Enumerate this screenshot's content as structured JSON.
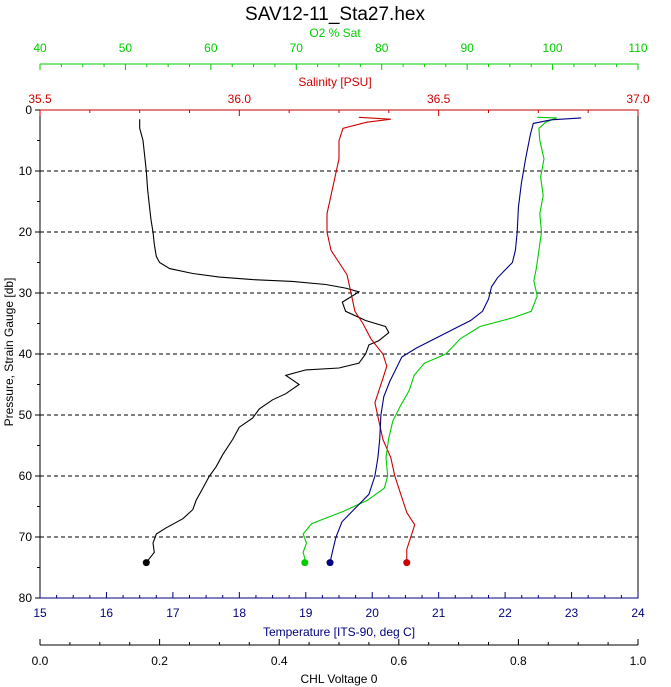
{
  "chart_data": {
    "type": "line",
    "title": "SAV12-11_Sta27.hex",
    "colors": {
      "temperature": "#000000",
      "salinity": "#cc0000",
      "o2": "#00cc00",
      "chl": "#000080",
      "axis": "#000000",
      "grid": "#000000"
    },
    "y_axis": {
      "label": "Pressure, Strain Gauge [db]",
      "range": [
        0,
        80
      ],
      "inverted": true,
      "ticks": [
        0,
        10,
        20,
        30,
        40,
        50,
        60,
        70,
        80
      ],
      "tick_labels": [
        "0",
        "10",
        "20",
        "30",
        "40",
        "50",
        "60",
        "70",
        "80"
      ],
      "dashed_grid": [
        10,
        20,
        30,
        40,
        50,
        60,
        70
      ]
    },
    "x_axes": [
      {
        "id": "o2",
        "label": "O2 % Sat",
        "position": "top-outer",
        "range": [
          40,
          110
        ],
        "ticks": [
          40,
          50,
          60,
          70,
          80,
          90,
          100,
          110
        ],
        "tick_labels": [
          "40",
          "50",
          "60",
          "70",
          "80",
          "90",
          "100",
          "110"
        ]
      },
      {
        "id": "salinity",
        "label": "Salinity [PSU]",
        "position": "top-inner",
        "range": [
          35.5,
          37.0
        ],
        "ticks": [
          35.5,
          36.0,
          36.5,
          37.0
        ],
        "tick_labels": [
          "35.5",
          "36.0",
          "36.5",
          "37.0"
        ]
      },
      {
        "id": "temperature",
        "label": "Temperature [ITS-90, deg C]",
        "position": "bottom-inner",
        "range": [
          15,
          24
        ],
        "ticks": [
          15,
          16,
          17,
          18,
          19,
          20,
          21,
          22,
          23,
          24
        ],
        "tick_labels": [
          "15",
          "16",
          "17",
          "18",
          "19",
          "20",
          "21",
          "22",
          "23",
          "24"
        ]
      },
      {
        "id": "chl",
        "label": "CHL Voltage 0",
        "position": "bottom-outer",
        "range": [
          0.0,
          1.0
        ],
        "ticks": [
          0.0,
          0.2,
          0.4,
          0.6,
          0.8,
          1.0
        ],
        "tick_labels": [
          "0.0",
          "0.2",
          "0.4",
          "0.6",
          "0.8",
          "1.0"
        ]
      }
    ],
    "series": [
      {
        "id": "temperature",
        "axis": "temperature",
        "values": [
          [
            16.5,
            1.5
          ],
          [
            16.5,
            3
          ],
          [
            16.55,
            5
          ],
          [
            16.58,
            8
          ],
          [
            16.6,
            10
          ],
          [
            16.62,
            13
          ],
          [
            16.65,
            16
          ],
          [
            16.67,
            18
          ],
          [
            16.7,
            20
          ],
          [
            16.72,
            22
          ],
          [
            16.75,
            24
          ],
          [
            16.8,
            25
          ],
          [
            16.95,
            26
          ],
          [
            17.3,
            26.8
          ],
          [
            17.7,
            27.4
          ],
          [
            18.2,
            27.8
          ],
          [
            18.8,
            28.1
          ],
          [
            19.3,
            28.6
          ],
          [
            19.6,
            29.2
          ],
          [
            19.8,
            29.8
          ],
          [
            19.7,
            30.5
          ],
          [
            19.55,
            31.5
          ],
          [
            19.6,
            33
          ],
          [
            19.9,
            34.5
          ],
          [
            20.2,
            35.5
          ],
          [
            20.25,
            36.5
          ],
          [
            20.1,
            37.8
          ],
          [
            19.95,
            38.5
          ],
          [
            19.9,
            40
          ],
          [
            19.8,
            41.5
          ],
          [
            19.5,
            42.3
          ],
          [
            19.0,
            42.6
          ],
          [
            18.7,
            43.5
          ],
          [
            18.9,
            45
          ],
          [
            18.7,
            46.5
          ],
          [
            18.5,
            47.5
          ],
          [
            18.3,
            49
          ],
          [
            18.2,
            50.5
          ],
          [
            18.0,
            52
          ],
          [
            17.9,
            54
          ],
          [
            17.75,
            56.5
          ],
          [
            17.65,
            58.5
          ],
          [
            17.55,
            60
          ],
          [
            17.45,
            62
          ],
          [
            17.35,
            64
          ],
          [
            17.3,
            65.5
          ],
          [
            17.15,
            67
          ],
          [
            16.9,
            68.5
          ],
          [
            16.75,
            69.5
          ],
          [
            16.7,
            71
          ],
          [
            16.72,
            72.5
          ],
          [
            16.65,
            73.5
          ],
          [
            16.6,
            74.2
          ]
        ]
      },
      {
        "id": "salinity",
        "axis": "salinity",
        "values": [
          [
            36.3,
            1.2
          ],
          [
            36.38,
            1.5
          ],
          [
            36.32,
            2
          ],
          [
            36.26,
            3
          ],
          [
            36.25,
            5
          ],
          [
            36.25,
            8
          ],
          [
            36.24,
            11
          ],
          [
            36.23,
            14
          ],
          [
            36.22,
            17
          ],
          [
            36.22,
            20
          ],
          [
            36.23,
            23
          ],
          [
            36.25,
            25
          ],
          [
            36.27,
            27
          ],
          [
            36.28,
            30
          ],
          [
            36.29,
            33
          ],
          [
            36.31,
            35
          ],
          [
            36.33,
            37.5
          ],
          [
            36.36,
            40
          ],
          [
            36.37,
            42
          ],
          [
            36.36,
            44
          ],
          [
            36.35,
            46
          ],
          [
            36.34,
            48
          ],
          [
            36.35,
            51
          ],
          [
            36.36,
            54
          ],
          [
            36.38,
            57
          ],
          [
            36.39,
            60
          ],
          [
            36.4,
            62
          ],
          [
            36.41,
            64
          ],
          [
            36.42,
            66
          ],
          [
            36.44,
            68
          ],
          [
            36.43,
            70
          ],
          [
            36.42,
            72
          ],
          [
            36.42,
            73.5
          ],
          [
            36.42,
            74.2
          ]
        ]
      },
      {
        "id": "o2",
        "axis": "o2",
        "values": [
          [
            98.2,
            1.2
          ],
          [
            100.5,
            1.3
          ],
          [
            99.2,
            2
          ],
          [
            98.4,
            3
          ],
          [
            98.5,
            5
          ],
          [
            99,
            8
          ],
          [
            98.6,
            11
          ],
          [
            98.9,
            14
          ],
          [
            98.5,
            17
          ],
          [
            98.7,
            20
          ],
          [
            98.4,
            23
          ],
          [
            98.1,
            26
          ],
          [
            97.8,
            28
          ],
          [
            98.2,
            30.5
          ],
          [
            97.5,
            33
          ],
          [
            95.5,
            34
          ],
          [
            91.5,
            35.5
          ],
          [
            89.2,
            37.5
          ],
          [
            87.5,
            40
          ],
          [
            85.0,
            41.5
          ],
          [
            83.8,
            43.5
          ],
          [
            83.2,
            46
          ],
          [
            82.2,
            48.5
          ],
          [
            81.3,
            51
          ],
          [
            80.8,
            54
          ],
          [
            80.5,
            57
          ],
          [
            80.7,
            60
          ],
          [
            80.3,
            62
          ],
          [
            78.3,
            64
          ],
          [
            75.5,
            65.8
          ],
          [
            71.8,
            67.8
          ],
          [
            70.8,
            69.5
          ],
          [
            71.2,
            71
          ],
          [
            70.8,
            72.5
          ],
          [
            71,
            73.5
          ],
          [
            71,
            74.2
          ]
        ]
      },
      {
        "id": "chl",
        "axis": "chl",
        "values": [
          [
            0.905,
            1.3
          ],
          [
            0.855,
            1.6
          ],
          [
            0.825,
            2.2
          ],
          [
            0.82,
            4
          ],
          [
            0.812,
            8
          ],
          [
            0.805,
            12
          ],
          [
            0.8,
            16
          ],
          [
            0.798,
            20
          ],
          [
            0.795,
            23
          ],
          [
            0.79,
            25
          ],
          [
            0.78,
            26
          ],
          [
            0.765,
            27.5
          ],
          [
            0.755,
            29
          ],
          [
            0.75,
            31
          ],
          [
            0.74,
            33
          ],
          [
            0.72,
            34.5
          ],
          [
            0.69,
            36
          ],
          [
            0.66,
            37.5
          ],
          [
            0.63,
            39
          ],
          [
            0.605,
            40.5
          ],
          [
            0.595,
            42.5
          ],
          [
            0.585,
            44.5
          ],
          [
            0.575,
            47
          ],
          [
            0.57,
            50
          ],
          [
            0.568,
            54
          ],
          [
            0.565,
            57
          ],
          [
            0.56,
            60
          ],
          [
            0.55,
            63
          ],
          [
            0.53,
            65
          ],
          [
            0.505,
            67.5
          ],
          [
            0.495,
            70
          ],
          [
            0.49,
            72
          ],
          [
            0.485,
            74.2
          ]
        ]
      }
    ]
  }
}
